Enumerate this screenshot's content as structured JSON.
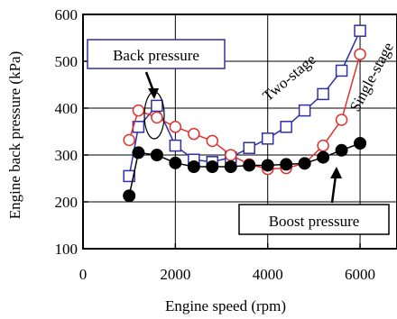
{
  "chart_data": {
    "type": "line",
    "xlabel": "Engine speed (rpm)",
    "ylabel": "Engine back pressure (kPa)",
    "xlim": [
      0,
      6800
    ],
    "ylim": [
      100,
      600
    ],
    "x_ticks": [
      "0",
      "2000",
      "4000",
      "6000"
    ],
    "x_tick_values": [
      0,
      2000,
      4000,
      6000
    ],
    "y_ticks": [
      "100",
      "200",
      "300",
      "400",
      "500",
      "600"
    ],
    "y_tick_values": [
      100,
      200,
      300,
      400,
      500,
      600
    ],
    "grid": true,
    "series": [
      {
        "name": "Two-stage",
        "color": "#2f2fa8",
        "marker": "square-open",
        "label_color": "#2f2fa8",
        "points": [
          [
            1000,
            255
          ],
          [
            1200,
            360
          ],
          [
            1600,
            405
          ],
          [
            2000,
            320
          ],
          [
            2400,
            290
          ],
          [
            2800,
            285
          ],
          [
            3200,
            295
          ],
          [
            3600,
            315
          ],
          [
            4000,
            335
          ],
          [
            4400,
            360
          ],
          [
            4800,
            395
          ],
          [
            5200,
            430
          ],
          [
            5600,
            480
          ],
          [
            6000,
            565
          ]
        ]
      },
      {
        "name": "Single-stage",
        "color": "#e23030",
        "marker": "circle-open",
        "label_color": "#e23030",
        "points": [
          [
            1000,
            332
          ],
          [
            1200,
            395
          ],
          [
            1600,
            380
          ],
          [
            2000,
            360
          ],
          [
            2400,
            345
          ],
          [
            2800,
            330
          ],
          [
            3200,
            300
          ],
          [
            3600,
            280
          ],
          [
            4000,
            270
          ],
          [
            4400,
            272
          ],
          [
            4800,
            282
          ],
          [
            5200,
            320
          ],
          [
            5600,
            375
          ],
          [
            6000,
            515
          ]
        ]
      },
      {
        "name": "Boost pressure",
        "color": "#000000",
        "marker": "circle-filled",
        "points": [
          [
            1000,
            213
          ],
          [
            1200,
            305
          ],
          [
            1600,
            300
          ],
          [
            2000,
            283
          ],
          [
            2400,
            275
          ],
          [
            2800,
            275
          ],
          [
            3200,
            275
          ],
          [
            3600,
            278
          ],
          [
            4000,
            278
          ],
          [
            4400,
            280
          ],
          [
            4800,
            282
          ],
          [
            5200,
            295
          ],
          [
            5600,
            310
          ],
          [
            6000,
            325
          ]
        ]
      }
    ],
    "annotations": [
      {
        "text": "Back pressure",
        "color": "#e23030",
        "boxed": true
      },
      {
        "text": "Boost pressure",
        "color": "#000000",
        "boxed": true
      }
    ]
  }
}
